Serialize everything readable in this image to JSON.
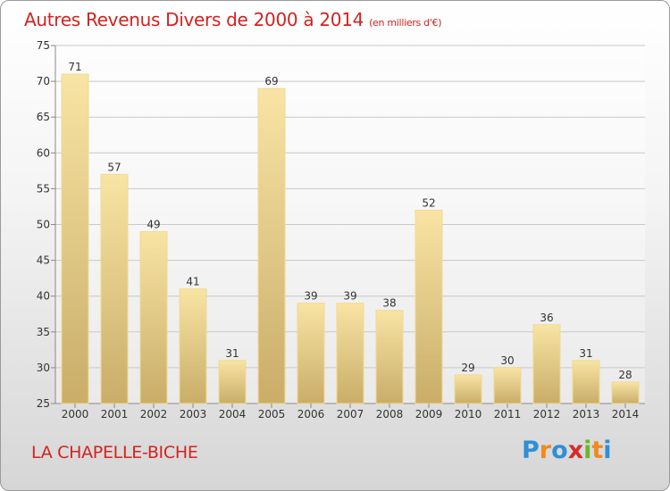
{
  "title": "Autres Revenus Divers de 2000 à 2014",
  "unit": "(en milliers d'€)",
  "commune": "LA CHAPELLE-BICHE",
  "logo": {
    "letters": [
      "P",
      "r",
      "o",
      "x",
      "i",
      "t",
      "i"
    ],
    "colors": [
      "#2e8fd6",
      "#f08a1c",
      "#2e8fd6",
      "#d62b2b",
      "#6bb52a",
      "#f08a1c",
      "#2e8fd6"
    ]
  },
  "colors": {
    "bar_light": "#f8e4a4",
    "bar_dark": "#c9ad69",
    "grid": "#c8c8c8",
    "title": "#d2231f"
  },
  "chart_data": {
    "type": "bar",
    "categories": [
      "2000",
      "2001",
      "2002",
      "2003",
      "2004",
      "2005",
      "2006",
      "2007",
      "2008",
      "2009",
      "2010",
      "2011",
      "2012",
      "2013",
      "2014"
    ],
    "values": [
      71,
      57,
      49,
      41,
      31,
      69,
      39,
      39,
      38,
      52,
      29,
      30,
      36,
      31,
      28
    ],
    "ylim": [
      25,
      75
    ],
    "yticks": [
      25,
      30,
      35,
      40,
      45,
      50,
      55,
      60,
      65,
      70,
      75
    ],
    "grid": true
  }
}
